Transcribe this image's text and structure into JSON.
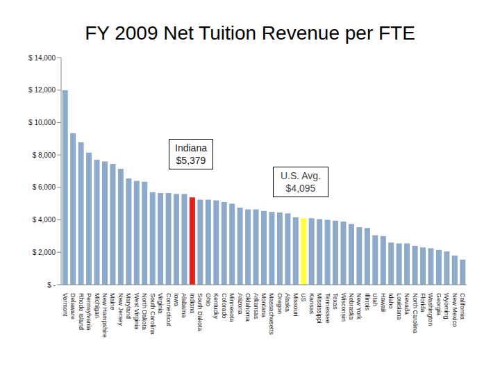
{
  "chart_data": {
    "type": "bar",
    "title": "FY 2009 Net Tuition Revenue per FTE",
    "categories": [
      "Vermont",
      "Delaware",
      "Rhode Island",
      "Pennsylvania",
      "Michigan",
      "New Hampshire",
      "Maine",
      "New Jersey",
      "Maryland",
      "West Virginia",
      "North Dakota",
      "South Carolina",
      "Virginia",
      "Connecticut",
      "Iowa",
      "Alabama",
      "Indiana",
      "South Dakota",
      "Ohio",
      "Kentucky",
      "Colorado",
      "Minnesota",
      "Arizona",
      "Oklahoma",
      "Arkansas",
      "Montana",
      "Massachusetts",
      "Oregon",
      "Alaska",
      "Missouri",
      "US",
      "Kansas",
      "Mississippi",
      "Tennessee",
      "Texas",
      "Wisconsin",
      "Nebraska",
      "New York",
      "Illinois",
      "Utah",
      "Hawaii",
      "Idaho",
      "Louisiana",
      "Nevada",
      "North Carolina",
      "Florida",
      "Washington",
      "Georgia",
      "Wyoming",
      "New Mexico",
      "California"
    ],
    "values": [
      11990,
      9340,
      8780,
      8140,
      7710,
      7600,
      7450,
      7150,
      6550,
      6400,
      6350,
      5700,
      5650,
      5650,
      5600,
      5600,
      5379,
      5250,
      5250,
      5200,
      5100,
      5000,
      4750,
      4650,
      4650,
      4550,
      4500,
      4450,
      4400,
      4150,
      4095,
      4100,
      4050,
      4000,
      3950,
      3900,
      3750,
      3550,
      3500,
      3050,
      3000,
      2600,
      2550,
      2550,
      2400,
      2300,
      2250,
      2150,
      2050,
      1800,
      1550
    ],
    "colors": [
      "#8eaacb",
      "#8eaacb",
      "#8eaacb",
      "#8eaacb",
      "#8eaacb",
      "#8eaacb",
      "#8eaacb",
      "#8eaacb",
      "#8eaacb",
      "#8eaacb",
      "#8eaacb",
      "#8eaacb",
      "#8eaacb",
      "#8eaacb",
      "#8eaacb",
      "#8eaacb",
      "#e8201c",
      "#8eaacb",
      "#8eaacb",
      "#8eaacb",
      "#8eaacb",
      "#8eaacb",
      "#8eaacb",
      "#8eaacb",
      "#8eaacb",
      "#8eaacb",
      "#8eaacb",
      "#8eaacb",
      "#8eaacb",
      "#8eaacb",
      "#ffff3c",
      "#8eaacb",
      "#8eaacb",
      "#8eaacb",
      "#8eaacb",
      "#8eaacb",
      "#8eaacb",
      "#8eaacb",
      "#8eaacb",
      "#8eaacb",
      "#8eaacb",
      "#8eaacb",
      "#8eaacb",
      "#8eaacb",
      "#8eaacb",
      "#8eaacb",
      "#8eaacb",
      "#8eaacb",
      "#8eaacb",
      "#8eaacb",
      "#8eaacb"
    ],
    "ylim": [
      0,
      14000
    ],
    "yticks": [
      {
        "value": 0,
        "label": "$ -"
      },
      {
        "value": 2000,
        "label": "$ 2,000"
      },
      {
        "value": 4000,
        "label": "$ 4,000"
      },
      {
        "value": 6000,
        "label": "$ 6,000"
      },
      {
        "value": 8000,
        "label": "$ 8,000"
      },
      {
        "value": 10000,
        "label": "$ 10,000"
      },
      {
        "value": 12000,
        "label": "$ 12,000"
      },
      {
        "value": 14000,
        "label": "$ 14,000"
      }
    ],
    "grid": false,
    "annotations": [
      {
        "text": [
          "Indiana",
          "$5,379"
        ]
      },
      {
        "text": [
          "U.S. Avg.",
          "$4,095"
        ]
      }
    ]
  }
}
